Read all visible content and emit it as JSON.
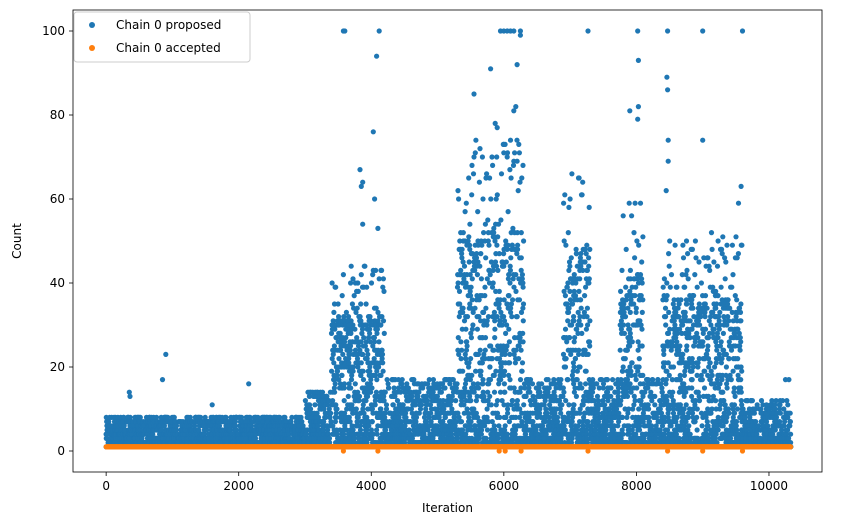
{
  "chart_data": {
    "type": "scatter",
    "title": "",
    "xlabel": "Iteration",
    "ylabel": "Count",
    "xlim": [
      -500,
      10800
    ],
    "ylim": [
      -5,
      105
    ],
    "x_ticks": [
      0,
      2000,
      4000,
      6000,
      8000,
      10000
    ],
    "y_ticks": [
      0,
      20,
      40,
      60,
      80,
      100
    ],
    "grid": false,
    "legend_position": "top-left",
    "x_range": [
      0,
      10330
    ],
    "series": [
      {
        "name": "Chain 0 proposed",
        "color": "#1f77b4",
        "marker": "circle",
        "description_bands": [
          {
            "x_from": 0,
            "x_to": 3000,
            "y_typical_max": 6
          },
          {
            "x_from": 3000,
            "x_to": 3400,
            "y_typical_max": 12
          },
          {
            "x_from": 3400,
            "x_to": 4200,
            "y_typical_max": 30
          },
          {
            "x_from": 4200,
            "x_to": 5300,
            "y_typical_max": 15
          },
          {
            "x_from": 5300,
            "x_to": 6300,
            "y_typical_max": 50
          },
          {
            "x_from": 6300,
            "x_to": 6900,
            "y_typical_max": 15
          },
          {
            "x_from": 6900,
            "x_to": 7300,
            "y_typical_max": 45
          },
          {
            "x_from": 7300,
            "x_to": 7750,
            "y_typical_max": 15
          },
          {
            "x_from": 7750,
            "x_to": 8100,
            "y_typical_max": 40
          },
          {
            "x_from": 8100,
            "x_to": 8400,
            "y_typical_max": 15
          },
          {
            "x_from": 8400,
            "x_to": 9600,
            "y_typical_max": 35
          },
          {
            "x_from": 9600,
            "x_to": 10330,
            "y_typical_max": 10
          }
        ],
        "notable_points": [
          {
            "x": 350,
            "y": 14
          },
          {
            "x": 360,
            "y": 13
          },
          {
            "x": 900,
            "y": 23
          },
          {
            "x": 850,
            "y": 17
          },
          {
            "x": 1600,
            "y": 11
          },
          {
            "x": 2150,
            "y": 16
          },
          {
            "x": 3580,
            "y": 100
          },
          {
            "x": 3600,
            "y": 100
          },
          {
            "x": 4120,
            "y": 100
          },
          {
            "x": 4080,
            "y": 94
          },
          {
            "x": 4030,
            "y": 76
          },
          {
            "x": 3830,
            "y": 67
          },
          {
            "x": 3870,
            "y": 64
          },
          {
            "x": 3850,
            "y": 63
          },
          {
            "x": 4050,
            "y": 60
          },
          {
            "x": 3870,
            "y": 54
          },
          {
            "x": 4100,
            "y": 53
          },
          {
            "x": 5550,
            "y": 85
          },
          {
            "x": 5800,
            "y": 91
          },
          {
            "x": 5950,
            "y": 100
          },
          {
            "x": 6000,
            "y": 100
          },
          {
            "x": 6050,
            "y": 100
          },
          {
            "x": 6100,
            "y": 100
          },
          {
            "x": 6150,
            "y": 100
          },
          {
            "x": 6250,
            "y": 100
          },
          {
            "x": 6250,
            "y": 99
          },
          {
            "x": 6200,
            "y": 92
          },
          {
            "x": 6180,
            "y": 82
          },
          {
            "x": 6150,
            "y": 81
          },
          {
            "x": 5870,
            "y": 78
          },
          {
            "x": 5900,
            "y": 77
          },
          {
            "x": 6000,
            "y": 71
          },
          {
            "x": 5550,
            "y": 70
          },
          {
            "x": 6050,
            "y": 70
          },
          {
            "x": 6150,
            "y": 69
          },
          {
            "x": 6200,
            "y": 69
          },
          {
            "x": 5520,
            "y": 68
          },
          {
            "x": 7270,
            "y": 100
          },
          {
            "x": 7900,
            "y": 81
          },
          {
            "x": 8020,
            "y": 100
          },
          {
            "x": 8030,
            "y": 93
          },
          {
            "x": 8030,
            "y": 82
          },
          {
            "x": 8020,
            "y": 79
          },
          {
            "x": 8470,
            "y": 100
          },
          {
            "x": 8460,
            "y": 89
          },
          {
            "x": 8470,
            "y": 86
          },
          {
            "x": 8480,
            "y": 74
          },
          {
            "x": 8480,
            "y": 69
          },
          {
            "x": 8450,
            "y": 62
          },
          {
            "x": 9000,
            "y": 100
          },
          {
            "x": 9000,
            "y": 74
          },
          {
            "x": 9600,
            "y": 100
          },
          {
            "x": 9580,
            "y": 63
          },
          {
            "x": 9540,
            "y": 59
          },
          {
            "x": 10300,
            "y": 17
          },
          {
            "x": 10250,
            "y": 17
          }
        ]
      },
      {
        "name": "Chain 0 accepted",
        "color": "#ff7f0e",
        "marker": "circle",
        "constant_y": 1,
        "occasional_y": 0,
        "occasional_x": [
          3580,
          4100,
          5930,
          6020,
          6260,
          7270,
          8470,
          9000,
          9600
        ]
      }
    ]
  }
}
